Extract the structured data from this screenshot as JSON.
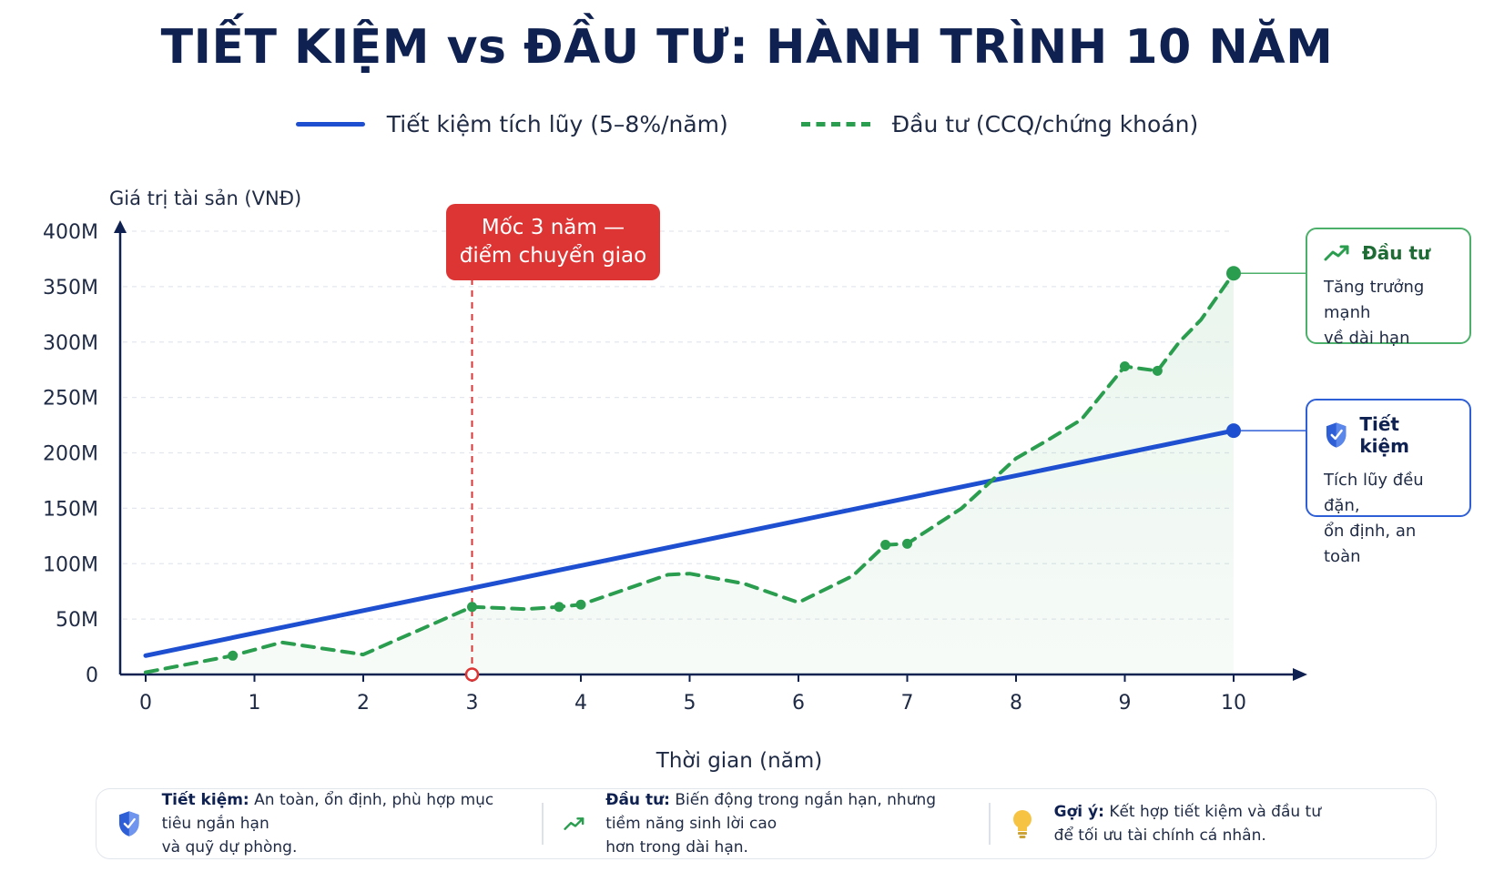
{
  "title": "TIẾT KIỆM vs ĐẦU TƯ: HÀNH TRÌNH 10 NĂM",
  "legend": {
    "savings": "Tiết kiệm tích lũy (5–8%/năm)",
    "invest": "Đầu tư (CCQ/chứng khoán)"
  },
  "colors": {
    "savings": "#1f4fd1",
    "invest": "#2a9d4f",
    "milestone": "#dc3534",
    "navy": "#0f2150"
  },
  "milestone": {
    "line1": "Mốc 3 năm —",
    "line2": "điểm chuyển giao",
    "x": 3
  },
  "cards": {
    "invest": {
      "title": "Đầu tư",
      "desc1": "Tăng trưởng mạnh",
      "desc2": "về dài hạn",
      "icon": "trend-up-icon"
    },
    "savings": {
      "title": "Tiết kiệm",
      "desc1": "Tích lũy đều đặn,",
      "desc2": "ổn định, an toàn",
      "icon": "shield-icon"
    }
  },
  "footer": {
    "savings": {
      "label": "Tiết kiệm:",
      "text1": " An toàn, ổn định, phù hợp mục tiêu ngắn hạn",
      "text2": "và quỹ dự phòng.",
      "icon": "shield-icon"
    },
    "invest": {
      "label": "Đầu tư:",
      "text1": " Biến động trong ngắn hạn, nhưng tiềm năng sinh lời cao",
      "text2": "hơn trong dài hạn.",
      "icon": "trend-up-icon"
    },
    "tip": {
      "label": "Gợi ý:",
      "text1": " Kết hợp tiết kiệm và đầu tư",
      "text2": "để tối ưu tài chính cá nhân.",
      "icon": "lightbulb-icon"
    }
  },
  "chart_data": {
    "type": "line",
    "ylabel": "Giá trị tài sản (VNĐ)",
    "xlabel": "Thời gian (năm)",
    "xlim": [
      0,
      10
    ],
    "ylim": [
      0,
      400
    ],
    "x_ticks": [
      "0",
      "1",
      "2",
      "3",
      "4",
      "5",
      "6",
      "7",
      "8",
      "9",
      "10"
    ],
    "y_ticks": [
      {
        "v": 0,
        "label": "0"
      },
      {
        "v": 50,
        "label": "50M"
      },
      {
        "v": 100,
        "label": "100M"
      },
      {
        "v": 150,
        "label": "150M"
      },
      {
        "v": 200,
        "label": "200M"
      },
      {
        "v": 250,
        "label": "250M"
      },
      {
        "v": 300,
        "label": "300M"
      },
      {
        "v": 350,
        "label": "350M"
      },
      {
        "v": 400,
        "label": "400M"
      }
    ],
    "grid": true,
    "series": [
      {
        "name": "Tiết kiệm tích lũy (5–8%/năm)",
        "style": "solid",
        "points": [
          [
            0,
            17
          ],
          [
            10,
            220
          ]
        ]
      },
      {
        "name": "Đầu tư (CCQ/chứng khoán)",
        "style": "dashed",
        "points": [
          [
            0,
            2
          ],
          [
            0.8,
            17
          ],
          [
            1.25,
            29
          ],
          [
            2,
            18
          ],
          [
            3,
            61
          ],
          [
            3.5,
            59
          ],
          [
            3.8,
            61
          ],
          [
            4,
            63
          ],
          [
            4.8,
            90
          ],
          [
            5,
            91
          ],
          [
            5.5,
            82
          ],
          [
            6,
            65
          ],
          [
            6.5,
            89
          ],
          [
            6.8,
            117
          ],
          [
            7,
            118
          ],
          [
            7.5,
            150
          ],
          [
            8,
            195
          ],
          [
            8.3,
            212
          ],
          [
            8.6,
            230
          ],
          [
            9,
            278
          ],
          [
            9.15,
            276
          ],
          [
            9.3,
            274
          ],
          [
            9.5,
            300
          ],
          [
            9.7,
            320
          ],
          [
            10,
            362
          ]
        ],
        "markers": [
          [
            0.8,
            17
          ],
          [
            3,
            61
          ],
          [
            3.8,
            61
          ],
          [
            4,
            63
          ],
          [
            6.8,
            117
          ],
          [
            7,
            118
          ],
          [
            9,
            278
          ],
          [
            9.3,
            274
          ],
          [
            10,
            362
          ]
        ]
      }
    ]
  }
}
